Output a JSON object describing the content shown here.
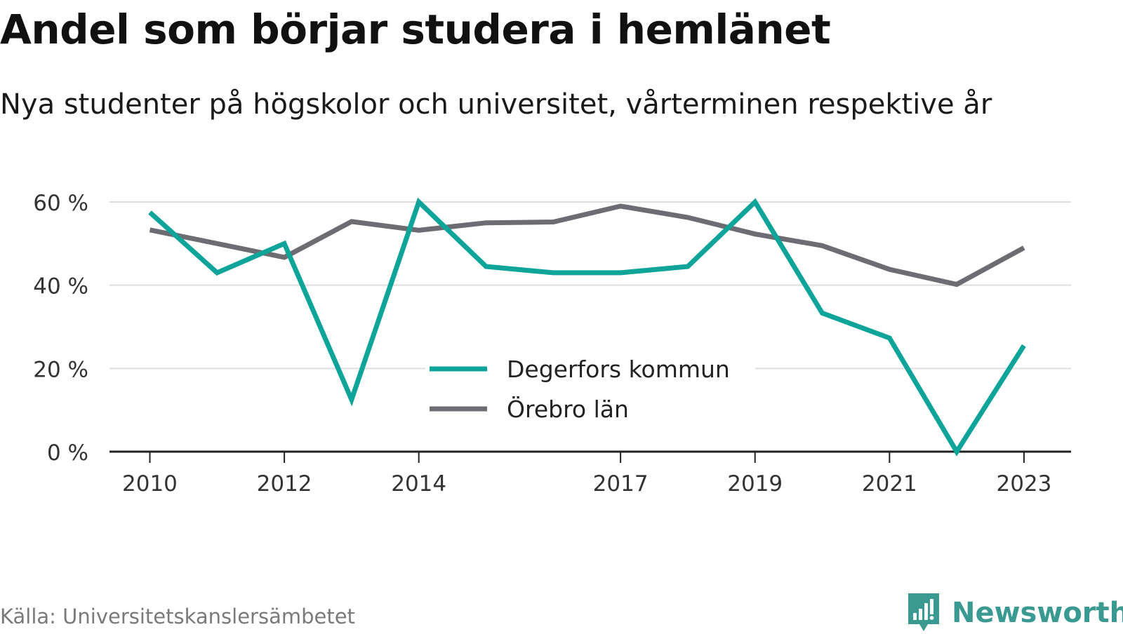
{
  "title": "Andel som börjar studera i hemlänet",
  "subtitle": "Nya studenter på högskolor och universitet, vårterminen respektive år",
  "source": "Källa: Universitetskanslersämbetet",
  "brand": "Newsworthy",
  "chart_data": {
    "type": "line",
    "title": "Andel som börjar studera i hemlänet",
    "subtitle": "Nya studenter på högskolor och universitet, vårterminen respektive år",
    "xlabel": "",
    "ylabel": "",
    "x": [
      2010,
      2011,
      2012,
      2013,
      2014,
      2015,
      2016,
      2017,
      2018,
      2019,
      2020,
      2021,
      2022,
      2023
    ],
    "x_tick_labels": [
      "2010",
      "2012",
      "2014",
      "2017",
      "2019",
      "2021",
      "2023"
    ],
    "y_ticks": [
      0,
      20,
      40,
      60
    ],
    "y_tick_labels": [
      "0 %",
      "20 %",
      "40 %",
      "60 %"
    ],
    "ylim": [
      0,
      60
    ],
    "grid": true,
    "legend_placement": "center-bottom",
    "series": [
      {
        "name": "Degerfors kommun",
        "color": "#0fa49a",
        "values": [
          57.5,
          43.0,
          50.0,
          12.5,
          60.0,
          44.5,
          43.0,
          43.0,
          44.5,
          60.0,
          33.3,
          27.3,
          0.0,
          25.5
        ]
      },
      {
        "name": "Örebro län",
        "color": "#6c6c72",
        "values": [
          53.3,
          50.0,
          46.7,
          55.3,
          53.2,
          55.0,
          55.2,
          59.0,
          56.3,
          52.3,
          49.5,
          43.8,
          40.2,
          49.0
        ]
      }
    ]
  }
}
